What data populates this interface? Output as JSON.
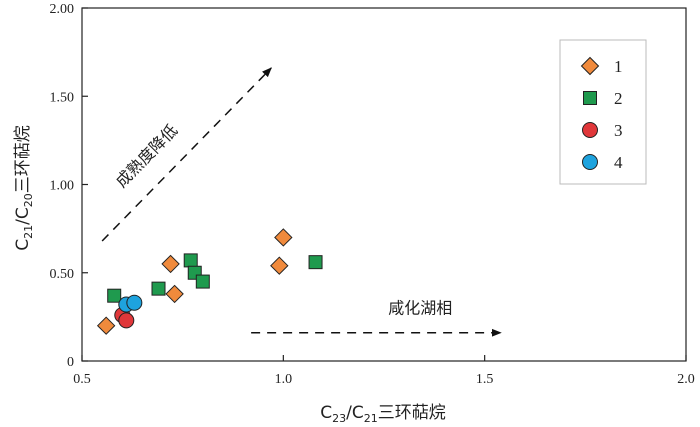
{
  "chart_data": {
    "type": "scatter",
    "xlim": [
      0.5,
      2.0
    ],
    "ylim": [
      0,
      2.0
    ],
    "x_ticks": [
      "0.5",
      "1.0",
      "1.5",
      "2.0"
    ],
    "y_ticks": [
      "0",
      "0.50",
      "1.00",
      "1.50",
      "2.00"
    ],
    "x_tick_values": [
      0.5,
      1.0,
      1.5,
      2.0
    ],
    "y_tick_values": [
      0,
      0.5,
      1.0,
      1.5,
      2.0
    ],
    "xlabel": {
      "base": "C",
      "sub1": "23",
      "mid": "/C",
      "sub2": "21",
      "tail": "三环萜烷"
    },
    "ylabel": {
      "base": "C",
      "sub1": "21",
      "mid": "/C",
      "sub2": "20",
      "tail": "三环萜烷"
    },
    "grid": false,
    "legend_position": "top-right",
    "series": [
      {
        "name": "1",
        "marker": "diamond",
        "color": "#f08a3c",
        "x": [
          0.56,
          0.72,
          0.73,
          0.99,
          1.0
        ],
        "y": [
          0.2,
          0.55,
          0.38,
          0.54,
          0.7
        ]
      },
      {
        "name": "2",
        "marker": "square",
        "color": "#1f9a4e",
        "x": [
          0.58,
          0.69,
          0.77,
          0.78,
          0.8,
          1.08
        ],
        "y": [
          0.37,
          0.41,
          0.57,
          0.5,
          0.45,
          0.56
        ]
      },
      {
        "name": "3",
        "marker": "circle",
        "color": "#e0373a",
        "x": [
          0.6,
          0.61
        ],
        "y": [
          0.26,
          0.23
        ]
      },
      {
        "name": "4",
        "marker": "circle",
        "color": "#1ea3de",
        "x": [
          0.61,
          0.63
        ],
        "y": [
          0.32,
          0.33
        ]
      }
    ],
    "annotations": [
      {
        "text": "成熟度降低",
        "from": [
          0.55,
          0.68
        ],
        "to": [
          0.97,
          1.66
        ]
      },
      {
        "text": "咸化湖相",
        "from": [
          0.92,
          0.16
        ],
        "to": [
          1.54,
          0.16
        ]
      }
    ]
  }
}
